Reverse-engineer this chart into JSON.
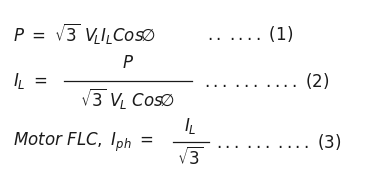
{
  "bg_color": "#ffffff",
  "text_color": "#1a1a1a",
  "figsize": [
    3.66,
    1.81
  ],
  "dpi": 100,
  "fontsize": 12
}
